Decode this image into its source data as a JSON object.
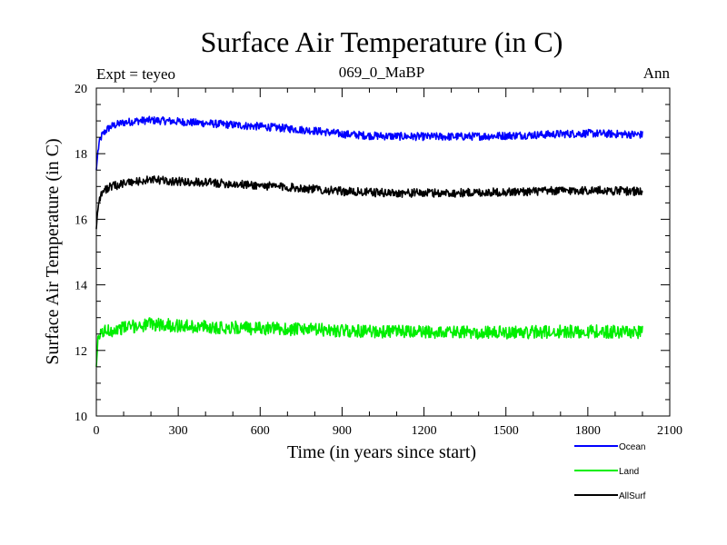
{
  "chart_data": {
    "type": "line",
    "title": "Surface Air Temperature (in C)",
    "subtitle": "069_0_MaBP",
    "left_label": "Expt = teyeo",
    "right_label": "Ann",
    "xlabel": "Time (in years since start)",
    "ylabel": "Surface Air Temperature (in C)",
    "xlim": [
      0,
      2100
    ],
    "ylim": [
      10,
      20
    ],
    "xticks": [
      0,
      300,
      600,
      900,
      1200,
      1500,
      1800,
      2100
    ],
    "yticks": [
      10,
      12,
      14,
      16,
      18,
      20
    ],
    "xtick_labels": [
      "0",
      "300",
      "600",
      "900",
      "1200",
      "1500",
      "1800",
      "2100"
    ],
    "ytick_labels": [
      "10",
      "12",
      "14",
      "16",
      "18",
      "20"
    ],
    "grid": false,
    "legend_position": "bottom-right",
    "x": [
      0,
      5,
      10,
      20,
      40,
      60,
      80,
      100,
      150,
      200,
      250,
      300,
      350,
      400,
      450,
      500,
      550,
      600,
      650,
      700,
      750,
      800,
      850,
      900,
      1000,
      1100,
      1200,
      1300,
      1400,
      1500,
      1600,
      1700,
      1800,
      1900,
      2000
    ],
    "series": [
      {
        "name": "Ocean",
        "color": "#0000ff",
        "noise": 0.12,
        "values": [
          17.5,
          18.0,
          18.3,
          18.55,
          18.75,
          18.85,
          18.9,
          18.95,
          19.0,
          19.02,
          19.0,
          18.98,
          18.95,
          18.93,
          18.9,
          18.88,
          18.85,
          18.83,
          18.8,
          18.77,
          18.73,
          18.7,
          18.65,
          18.6,
          18.55,
          18.53,
          18.52,
          18.52,
          18.53,
          18.55,
          18.57,
          18.6,
          18.62,
          18.6,
          18.58
        ]
      },
      {
        "name": "Land",
        "color": "#00ee00",
        "noise": 0.2,
        "values": [
          11.5,
          12.2,
          12.4,
          12.55,
          12.6,
          12.62,
          12.65,
          12.7,
          12.75,
          12.8,
          12.78,
          12.75,
          12.73,
          12.72,
          12.7,
          12.7,
          12.68,
          12.67,
          12.66,
          12.65,
          12.64,
          12.63,
          12.62,
          12.6,
          12.58,
          12.57,
          12.56,
          12.55,
          12.55,
          12.55,
          12.56,
          12.57,
          12.58,
          12.57,
          12.56
        ]
      },
      {
        "name": "AllSurf",
        "color": "#000000",
        "noise": 0.13,
        "values": [
          15.7,
          16.3,
          16.6,
          16.8,
          16.95,
          17.0,
          17.05,
          17.1,
          17.15,
          17.2,
          17.18,
          17.15,
          17.13,
          17.12,
          17.1,
          17.08,
          17.05,
          17.03,
          17.0,
          16.98,
          16.95,
          16.92,
          16.88,
          16.85,
          16.82,
          16.8,
          16.8,
          16.8,
          16.82,
          16.83,
          16.85,
          16.87,
          16.88,
          16.87,
          16.85
        ]
      }
    ]
  }
}
